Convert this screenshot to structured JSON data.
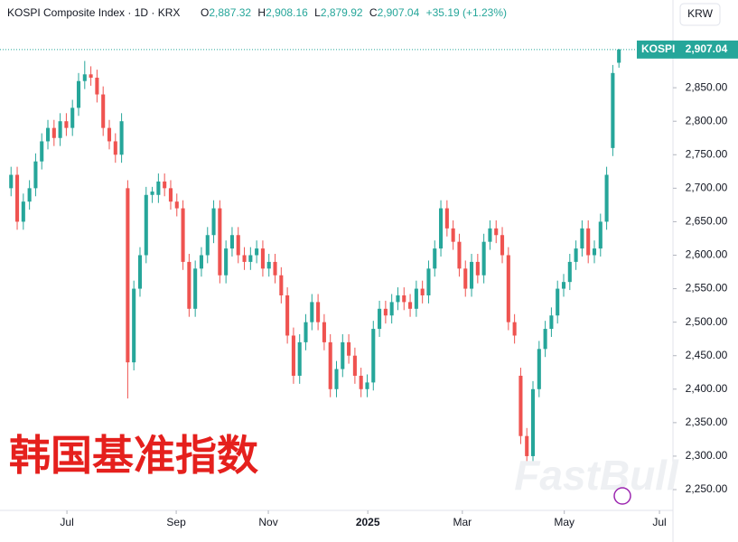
{
  "header": {
    "symbol": "KOSPI Composite Index · 1D · KRX",
    "o_label": "O",
    "o_value": "2,887.32",
    "h_label": "H",
    "h_value": "2,908.16",
    "l_label": "L",
    "l_value": "2,879.92",
    "c_label": "C",
    "c_value": "2,907.04",
    "change": "+35.19 (+1.23%)",
    "currency": "KRW"
  },
  "price_tag": {
    "name": "KOSPI",
    "value": 2907.04,
    "label": "2,907.04"
  },
  "watermark": "韩国基准指数",
  "brand": "FastBull",
  "chart_data": {
    "type": "candlestick",
    "up_color": "#26a69a",
    "down_color": "#ef5350",
    "ylim": [
      2219,
      2981
    ],
    "yticks": [
      {
        "value": 2250,
        "label": "2,250.00"
      },
      {
        "value": 2300,
        "label": "2,300.00"
      },
      {
        "value": 2350,
        "label": "2,350.00"
      },
      {
        "value": 2400,
        "label": "2,400.00"
      },
      {
        "value": 2450,
        "label": "2,450.00"
      },
      {
        "value": 2500,
        "label": "2,500.00"
      },
      {
        "value": 2550,
        "label": "2,550.00"
      },
      {
        "value": 2600,
        "label": "2,600.00"
      },
      {
        "value": 2650,
        "label": "2,650.00"
      },
      {
        "value": 2700,
        "label": "2,700.00"
      },
      {
        "value": 2750,
        "label": "2,750.00"
      },
      {
        "value": 2800,
        "label": "2,800.00"
      },
      {
        "value": 2850,
        "label": "2,850.00"
      }
    ],
    "xlim": [
      -1.8,
      107.8
    ],
    "xticks": [
      {
        "value": 9.1,
        "label": "Jul"
      },
      {
        "value": 26.9,
        "label": "Sep"
      },
      {
        "value": 41.9,
        "label": "Nov"
      },
      {
        "value": 58.1,
        "label": "2025"
      },
      {
        "value": 73.5,
        "label": "Mar"
      },
      {
        "value": 90.1,
        "label": "May"
      },
      {
        "value": 105.6,
        "label": "Jul"
      }
    ],
    "open": [
      2700,
      2720,
      2650,
      2680,
      2700,
      2740,
      2770,
      2790,
      2775,
      2800,
      2790,
      2820,
      2860,
      2870,
      2865,
      2840,
      2790,
      2770,
      2750,
      2700,
      2440,
      2550,
      2600,
      2690,
      2690,
      2710,
      2700,
      2680,
      2670,
      2590,
      2520,
      2580,
      2600,
      2630,
      2670,
      2570,
      2610,
      2630,
      2600,
      2590,
      2600,
      2610,
      2580,
      2590,
      2570,
      2540,
      2480,
      2420,
      2470,
      2500,
      2530,
      2500,
      2470,
      2400,
      2430,
      2470,
      2450,
      2420,
      2400,
      2410,
      2490,
      2520,
      2510,
      2530,
      2540,
      2530,
      2520,
      2550,
      2540,
      2580,
      2610,
      2670,
      2640,
      2620,
      2580,
      2550,
      2590,
      2570,
      2620,
      2640,
      2630,
      2600,
      2500,
      2420,
      2330,
      2300,
      2400,
      2460,
      2490,
      2510,
      2550,
      2560,
      2590,
      2610,
      2640,
      2600,
      2610,
      2650,
      2760,
      2887.32
    ],
    "high": [
      2732,
      2732,
      2692,
      2712,
      2752,
      2782,
      2802,
      2802,
      2812,
      2812,
      2832,
      2872,
      2890,
      2882,
      2877,
      2852,
      2802,
      2782,
      2812,
      2712,
      2562,
      2612,
      2702,
      2702,
      2722,
      2722,
      2712,
      2692,
      2682,
      2602,
      2592,
      2612,
      2642,
      2682,
      2682,
      2622,
      2642,
      2642,
      2612,
      2612,
      2622,
      2622,
      2602,
      2602,
      2582,
      2552,
      2492,
      2482,
      2512,
      2542,
      2542,
      2512,
      2482,
      2442,
      2482,
      2482,
      2462,
      2432,
      2422,
      2502,
      2532,
      2532,
      2542,
      2552,
      2552,
      2542,
      2562,
      2562,
      2592,
      2622,
      2682,
      2682,
      2652,
      2632,
      2592,
      2602,
      2602,
      2632,
      2652,
      2652,
      2642,
      2612,
      2512,
      2432,
      2342,
      2412,
      2472,
      2502,
      2522,
      2562,
      2572,
      2602,
      2622,
      2652,
      2652,
      2622,
      2662,
      2732,
      2884,
      2908.16
    ],
    "low": [
      2688,
      2638,
      2638,
      2668,
      2688,
      2728,
      2758,
      2763,
      2763,
      2778,
      2778,
      2808,
      2848,
      2853,
      2828,
      2778,
      2758,
      2738,
      2738,
      2386,
      2428,
      2538,
      2588,
      2678,
      2678,
      2688,
      2668,
      2658,
      2578,
      2508,
      2508,
      2568,
      2588,
      2618,
      2558,
      2558,
      2598,
      2588,
      2578,
      2578,
      2588,
      2568,
      2568,
      2558,
      2528,
      2468,
      2408,
      2408,
      2458,
      2488,
      2488,
      2458,
      2388,
      2388,
      2418,
      2438,
      2408,
      2388,
      2388,
      2398,
      2478,
      2498,
      2498,
      2518,
      2518,
      2508,
      2508,
      2528,
      2528,
      2568,
      2598,
      2628,
      2608,
      2568,
      2538,
      2538,
      2558,
      2558,
      2608,
      2618,
      2588,
      2488,
      2468,
      2318,
      2290,
      2288,
      2388,
      2448,
      2478,
      2498,
      2538,
      2548,
      2578,
      2598,
      2588,
      2588,
      2598,
      2638,
      2748,
      2879.92
    ],
    "close": [
      2720,
      2650,
      2680,
      2700,
      2740,
      2770,
      2790,
      2775,
      2800,
      2790,
      2820,
      2860,
      2870,
      2865,
      2840,
      2790,
      2770,
      2750,
      2800,
      2440,
      2550,
      2600,
      2690,
      2695,
      2710,
      2700,
      2680,
      2670,
      2590,
      2520,
      2580,
      2600,
      2630,
      2670,
      2570,
      2610,
      2630,
      2600,
      2590,
      2600,
      2610,
      2580,
      2590,
      2570,
      2540,
      2480,
      2420,
      2470,
      2500,
      2530,
      2500,
      2470,
      2400,
      2430,
      2470,
      2450,
      2420,
      2400,
      2410,
      2490,
      2520,
      2510,
      2530,
      2540,
      2530,
      2520,
      2550,
      2540,
      2580,
      2610,
      2670,
      2640,
      2620,
      2580,
      2550,
      2590,
      2570,
      2620,
      2640,
      2630,
      2600,
      2500,
      2480,
      2330,
      2300,
      2400,
      2460,
      2490,
      2510,
      2550,
      2560,
      2590,
      2610,
      2640,
      2600,
      2610,
      2650,
      2720,
      2872,
      2907.04
    ]
  }
}
